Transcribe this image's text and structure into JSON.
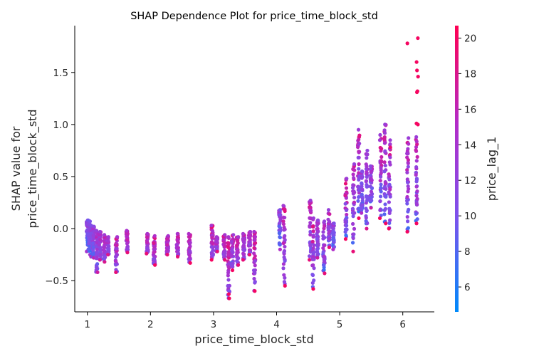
{
  "chart_data": {
    "type": "scatter",
    "title": "SHAP Dependence Plot for price_time_block_std",
    "xlabel": "price_time_block_std",
    "ylabel_lines": [
      "SHAP value for",
      "price_time_block_std"
    ],
    "color_label": "price_lag_1",
    "xlim": [
      0.8,
      6.5
    ],
    "ylim": [
      -0.8,
      1.95
    ],
    "xticks": [
      1,
      2,
      3,
      4,
      5,
      6
    ],
    "yticks": [
      -0.5,
      0.0,
      0.5,
      1.0,
      1.5
    ],
    "ytick_labels": [
      "−0.5",
      "0.0",
      "0.5",
      "1.0",
      "1.5"
    ],
    "color_range": [
      4.6,
      20.7
    ],
    "color_ticks": [
      6,
      8,
      10,
      12,
      14,
      16,
      18,
      20
    ],
    "colormap": [
      "#008afb",
      "#7c52ec",
      "#b32bc7",
      "#ff0052"
    ],
    "grid": false,
    "columns": [
      {
        "x": 1.0,
        "ymin": -0.22,
        "ymax": 0.08,
        "cmin": 5,
        "cmax": 14
      },
      {
        "x": 1.03,
        "ymin": -0.25,
        "ymax": 0.07,
        "cmin": 6,
        "cmax": 14
      },
      {
        "x": 1.07,
        "ymin": -0.27,
        "ymax": 0.03,
        "cmin": 6,
        "cmax": 15
      },
      {
        "x": 1.1,
        "ymin": -0.28,
        "ymax": 0.02,
        "cmin": 7,
        "cmax": 16
      },
      {
        "x": 1.15,
        "ymin": -0.42,
        "ymax": -0.02,
        "cmin": 8,
        "cmax": 17
      },
      {
        "x": 1.2,
        "ymin": -0.3,
        "ymax": -0.03,
        "cmin": 8,
        "cmax": 17
      },
      {
        "x": 1.27,
        "ymin": -0.32,
        "ymax": -0.06,
        "cmin": 9,
        "cmax": 18
      },
      {
        "x": 1.33,
        "ymin": -0.25,
        "ymax": -0.08,
        "cmin": 9,
        "cmax": 18
      },
      {
        "x": 1.46,
        "ymin": -0.42,
        "ymax": -0.08,
        "cmin": 9,
        "cmax": 19
      },
      {
        "x": 1.63,
        "ymin": -0.23,
        "ymax": -0.02,
        "cmin": 10,
        "cmax": 19
      },
      {
        "x": 1.95,
        "ymin": -0.24,
        "ymax": -0.05,
        "cmin": 10,
        "cmax": 19
      },
      {
        "x": 2.06,
        "ymin": -0.35,
        "ymax": -0.07,
        "cmin": 10,
        "cmax": 20
      },
      {
        "x": 2.27,
        "ymin": -0.25,
        "ymax": -0.07,
        "cmin": 10,
        "cmax": 19
      },
      {
        "x": 2.43,
        "ymin": -0.27,
        "ymax": -0.05,
        "cmin": 10,
        "cmax": 19
      },
      {
        "x": 2.62,
        "ymin": -0.33,
        "ymax": -0.05,
        "cmin": 10,
        "cmax": 20
      },
      {
        "x": 2.98,
        "ymin": -0.3,
        "ymax": 0.03,
        "cmin": 9,
        "cmax": 20
      },
      {
        "x": 3.05,
        "ymin": -0.22,
        "ymax": -0.08,
        "cmin": 9,
        "cmax": 19
      },
      {
        "x": 3.17,
        "ymin": -0.3,
        "ymax": -0.06,
        "cmin": 9,
        "cmax": 19
      },
      {
        "x": 3.24,
        "ymin": -0.67,
        "ymax": -0.08,
        "cmin": 9,
        "cmax": 20
      },
      {
        "x": 3.3,
        "ymin": -0.4,
        "ymax": -0.06,
        "cmin": 6,
        "cmax": 20
      },
      {
        "x": 3.38,
        "ymin": -0.35,
        "ymax": -0.08,
        "cmin": 9,
        "cmax": 19
      },
      {
        "x": 3.48,
        "ymin": -0.3,
        "ymax": -0.05,
        "cmin": 9,
        "cmax": 19
      },
      {
        "x": 3.57,
        "ymin": -0.25,
        "ymax": -0.03,
        "cmin": 9,
        "cmax": 19
      },
      {
        "x": 3.65,
        "ymin": -0.6,
        "ymax": -0.03,
        "cmin": 9,
        "cmax": 20
      },
      {
        "x": 4.05,
        "ymin": -0.2,
        "ymax": 0.18,
        "cmin": 5,
        "cmax": 15
      },
      {
        "x": 4.12,
        "ymin": -0.55,
        "ymax": 0.22,
        "cmin": 7,
        "cmax": 20
      },
      {
        "x": 4.53,
        "ymin": -0.3,
        "ymax": 0.27,
        "cmin": 7,
        "cmax": 19
      },
      {
        "x": 4.58,
        "ymin": -0.58,
        "ymax": 0.1,
        "cmin": 6,
        "cmax": 20
      },
      {
        "x": 4.65,
        "ymin": -0.28,
        "ymax": 0.08,
        "cmin": 7,
        "cmax": 17
      },
      {
        "x": 4.75,
        "ymin": -0.43,
        "ymax": 0.07,
        "cmin": 6,
        "cmax": 19
      },
      {
        "x": 4.83,
        "ymin": -0.18,
        "ymax": 0.18,
        "cmin": 6,
        "cmax": 19
      },
      {
        "x": 4.9,
        "ymin": -0.2,
        "ymax": 0.05,
        "cmin": 6,
        "cmax": 15
      },
      {
        "x": 5.1,
        "ymin": -0.1,
        "ymax": 0.48,
        "cmin": 6,
        "cmax": 20
      },
      {
        "x": 5.22,
        "ymin": -0.22,
        "ymax": 0.62,
        "cmin": 6,
        "cmax": 19
      },
      {
        "x": 5.3,
        "ymin": 0.1,
        "ymax": 0.95,
        "cmin": 6,
        "cmax": 20
      },
      {
        "x": 5.35,
        "ymin": 0.15,
        "ymax": 0.55,
        "cmin": 6,
        "cmax": 15
      },
      {
        "x": 5.43,
        "ymin": 0.0,
        "ymax": 0.75,
        "cmin": 6,
        "cmax": 18
      },
      {
        "x": 5.5,
        "ymin": 0.2,
        "ymax": 0.6,
        "cmin": 6,
        "cmax": 17
      },
      {
        "x": 5.65,
        "ymin": 0.1,
        "ymax": 0.9,
        "cmin": 6,
        "cmax": 20
      },
      {
        "x": 5.72,
        "ymin": 0.05,
        "ymax": 1.0,
        "cmin": 6,
        "cmax": 20
      },
      {
        "x": 5.79,
        "ymin": 0.0,
        "ymax": 0.85,
        "cmin": 6,
        "cmax": 20
      },
      {
        "x": 6.08,
        "ymin": -0.03,
        "ymax": 0.87,
        "cmin": 6,
        "cmax": 20
      },
      {
        "x": 6.22,
        "ymin": 0.05,
        "ymax": 0.88,
        "cmin": 6,
        "cmax": 20
      }
    ],
    "outliers": [
      {
        "x": 6.08,
        "y": 1.78,
        "c": 20
      },
      {
        "x": 6.23,
        "y": 1.83,
        "c": 20
      },
      {
        "x": 6.23,
        "y": 1.6,
        "c": 20
      },
      {
        "x": 6.23,
        "y": 1.52,
        "c": 20
      },
      {
        "x": 6.23,
        "y": 1.46,
        "c": 20
      },
      {
        "x": 6.23,
        "y": 1.32,
        "c": 20
      },
      {
        "x": 6.23,
        "y": 1.31,
        "c": 20
      },
      {
        "x": 6.23,
        "y": 1.01,
        "c": 20
      },
      {
        "x": 6.23,
        "y": 1.0,
        "c": 20
      },
      {
        "x": 3.24,
        "y": -0.63,
        "c": 20
      },
      {
        "x": 3.24,
        "y": -0.67,
        "c": 20
      }
    ]
  }
}
